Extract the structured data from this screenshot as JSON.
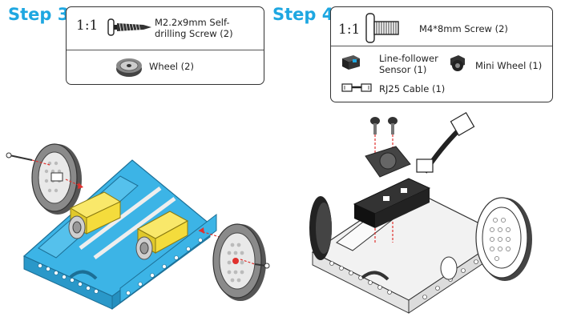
{
  "step3": {
    "title": "Step 3",
    "scale": "1:1",
    "parts": [
      {
        "label": "M2.2x9mm Self-drilling Screw (2)",
        "icon": "self-drilling-screw-icon"
      },
      {
        "label": "Wheel (2)",
        "icon": "wheel-icon"
      }
    ]
  },
  "step4": {
    "title": "Step 4",
    "scale": "1:1",
    "parts": [
      {
        "label": "M4*8mm Screw (2)",
        "icon": "m4-screw-icon"
      },
      {
        "label_line1": "Line-follower",
        "label_line2": "Sensor (1)",
        "icon": "line-follower-sensor-icon"
      },
      {
        "label": "Mini Wheel (1)",
        "icon": "mini-wheel-icon"
      },
      {
        "label": "RJ25 Cable (1)",
        "icon": "rj25-cable-icon"
      }
    ]
  },
  "colors": {
    "accent": "#1ea7e1",
    "chassis_blue": "#3cb4e6",
    "motor_yellow": "#f4dc3c",
    "arrow_red": "#e0312e",
    "tire_gray": "#8a8a8a"
  }
}
